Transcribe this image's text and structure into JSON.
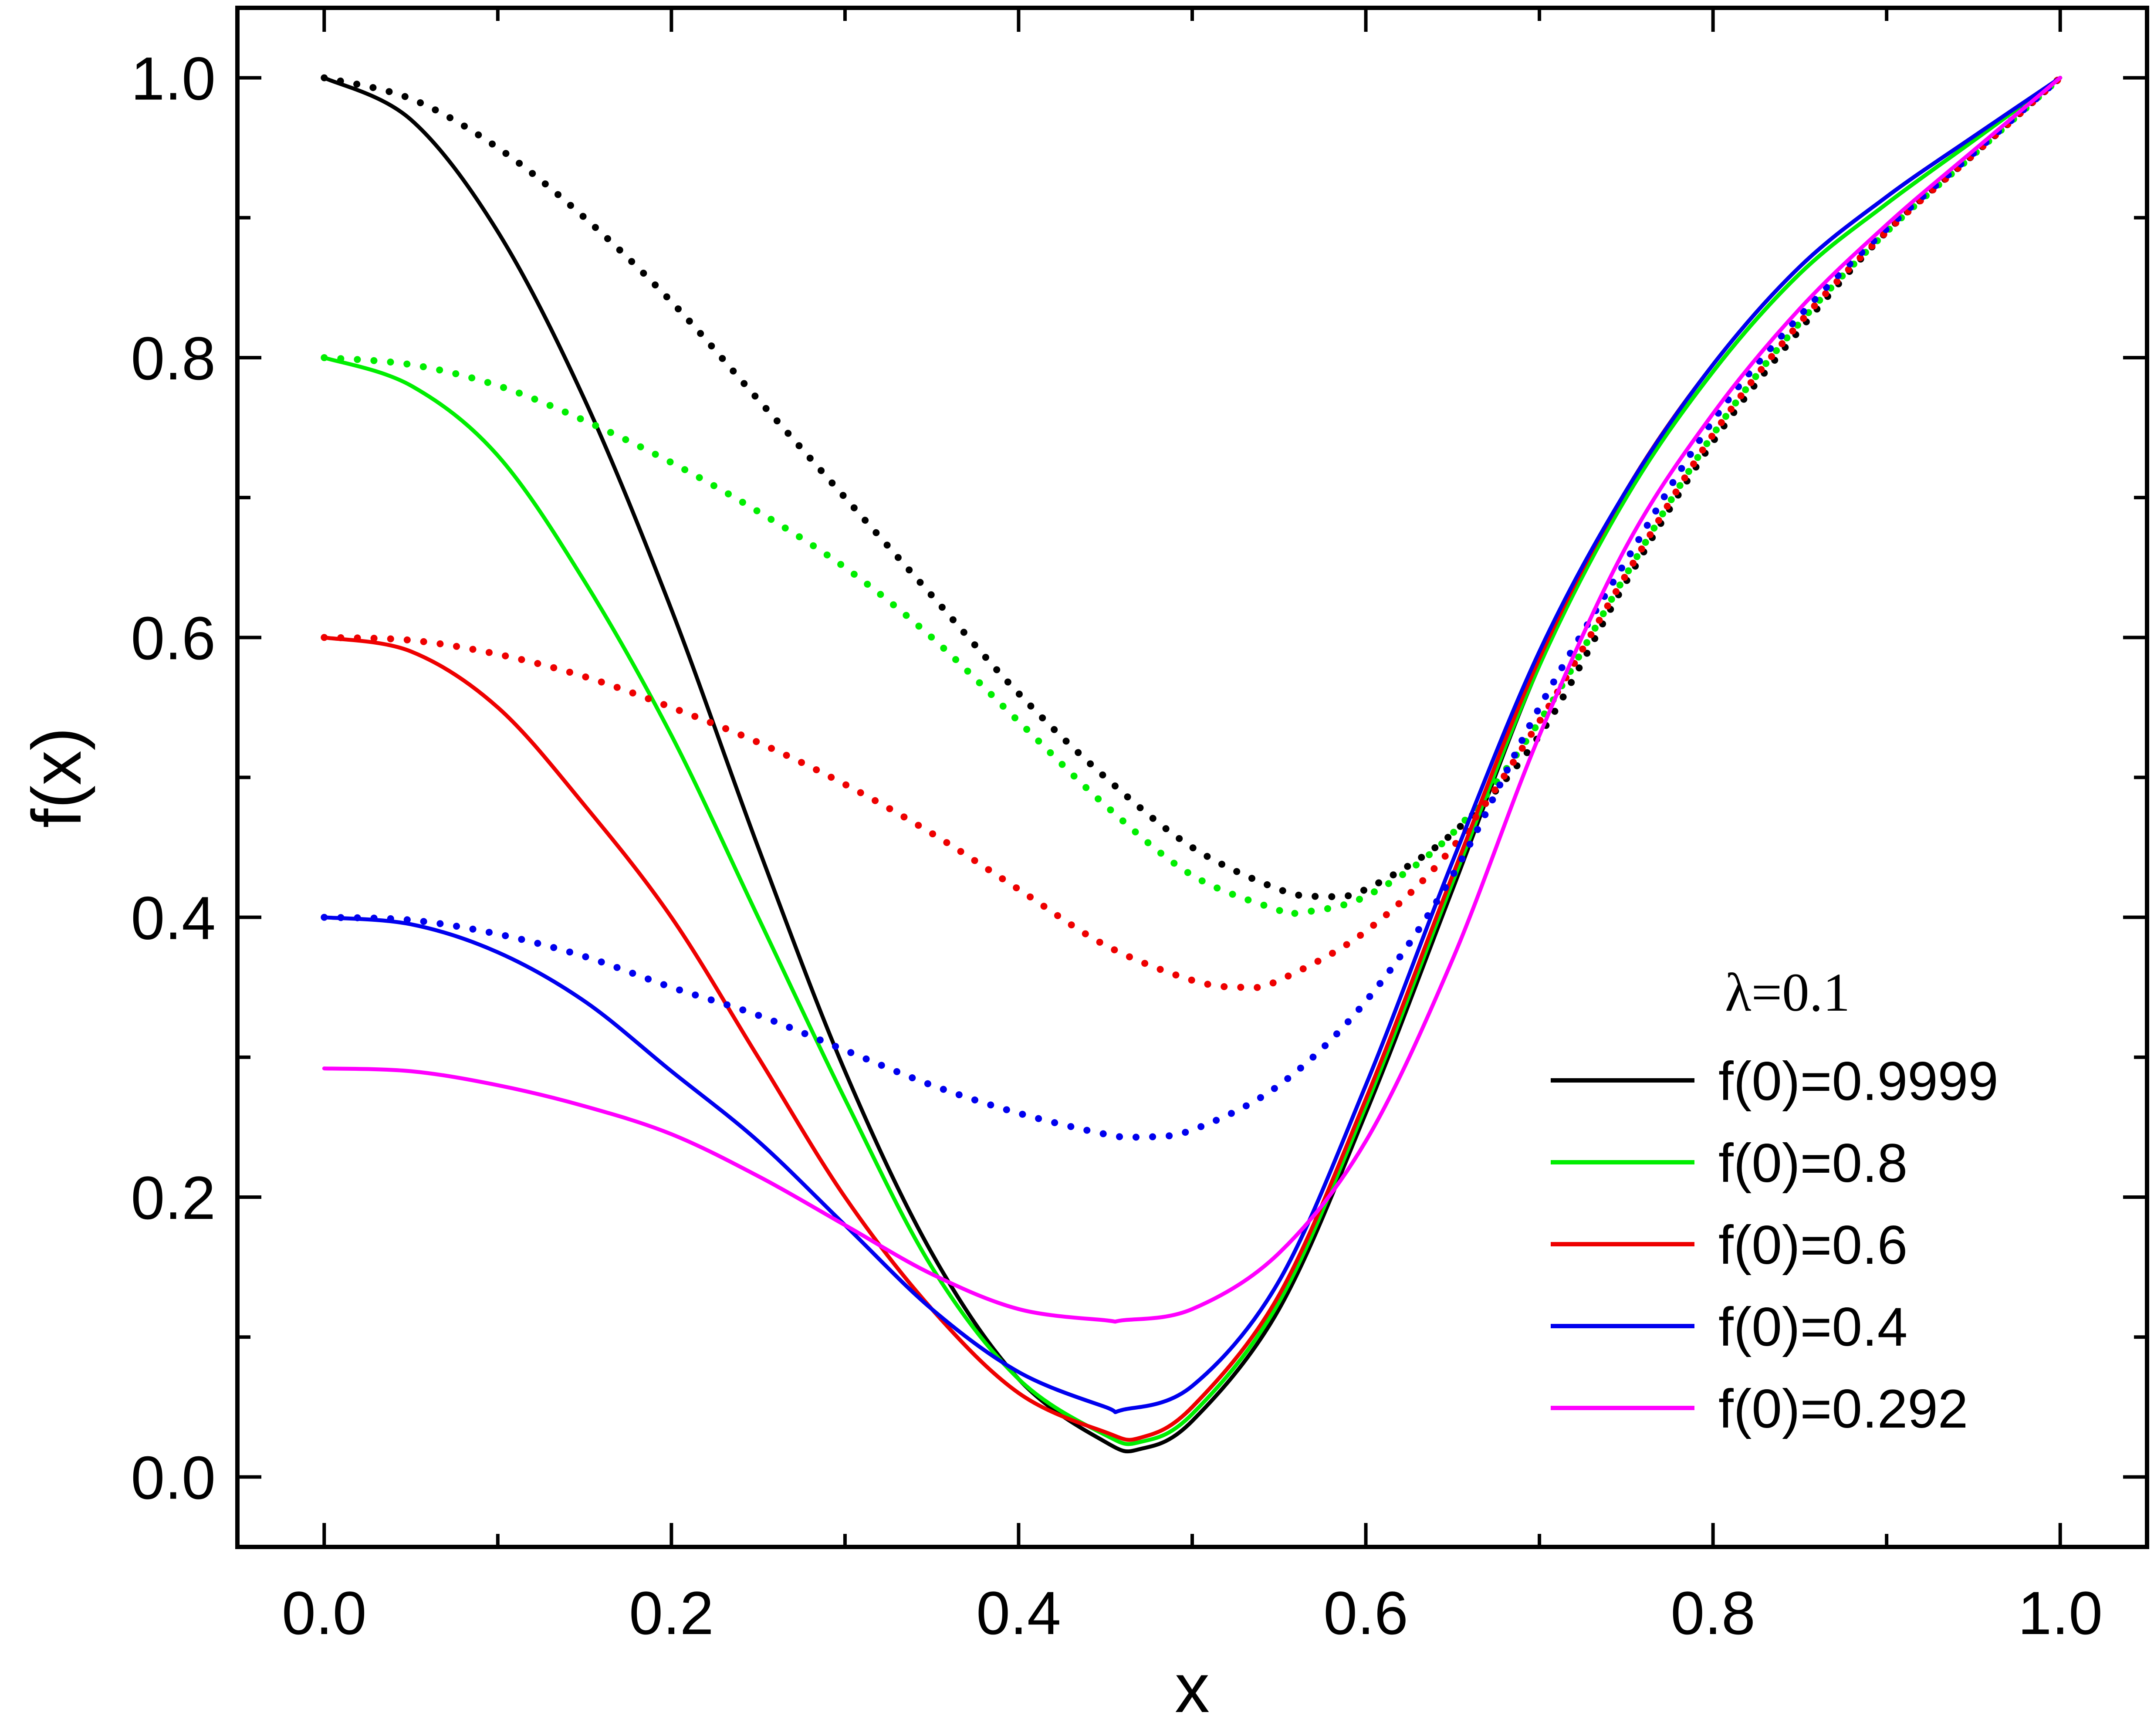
{
  "chart_data": {
    "type": "line",
    "xlabel": "x",
    "ylabel": "f(x)",
    "xlim": [
      -0.05,
      1.05
    ],
    "ylim": [
      -0.05,
      1.05
    ],
    "x_ticks": [
      "0.0",
      "0.2",
      "0.4",
      "0.6",
      "0.8",
      "1.0"
    ],
    "y_ticks": [
      "0.0",
      "0.2",
      "0.4",
      "0.6",
      "0.8",
      "1.0"
    ],
    "grid": false,
    "legend_position": "bottom-right",
    "legend_title": "λ=0.1",
    "series": [
      {
        "name": "f(0)=0.9999",
        "color": "#000000",
        "style": "solid",
        "x": [
          0,
          0.05,
          0.1,
          0.15,
          0.2,
          0.25,
          0.3,
          0.35,
          0.4,
          0.45,
          0.47,
          0.5,
          0.55,
          0.6,
          0.65,
          0.7,
          0.75,
          0.8,
          0.85,
          0.9,
          0.95,
          1.0
        ],
        "y": [
          1.0,
          0.97,
          0.89,
          0.77,
          0.62,
          0.45,
          0.29,
          0.16,
          0.07,
          0.025,
          0.02,
          0.04,
          0.12,
          0.26,
          0.42,
          0.58,
          0.7,
          0.79,
          0.86,
          0.91,
          0.955,
          1.0
        ]
      },
      {
        "name": "f(0)=0.9999",
        "color": "#000000",
        "style": "dotted",
        "x": [
          0,
          0.05,
          0.1,
          0.15,
          0.2,
          0.25,
          0.3,
          0.35,
          0.4,
          0.45,
          0.5,
          0.55,
          0.575,
          0.6,
          0.65,
          0.7,
          0.75,
          0.8,
          0.85,
          0.9,
          0.95,
          1.0
        ],
        "y": [
          1.0,
          0.985,
          0.95,
          0.9,
          0.84,
          0.77,
          0.7,
          0.63,
          0.56,
          0.5,
          0.45,
          0.42,
          0.415,
          0.42,
          0.46,
          0.53,
          0.64,
          0.74,
          0.82,
          0.89,
          0.945,
          1.0
        ]
      },
      {
        "name": "f(0)=0.8",
        "color": "#00ee00",
        "style": "solid",
        "x": [
          0,
          0.05,
          0.1,
          0.15,
          0.2,
          0.25,
          0.3,
          0.35,
          0.4,
          0.45,
          0.47,
          0.5,
          0.55,
          0.6,
          0.65,
          0.7,
          0.75,
          0.8,
          0.85,
          0.9,
          0.95,
          1.0
        ],
        "y": [
          0.8,
          0.78,
          0.73,
          0.64,
          0.53,
          0.4,
          0.27,
          0.15,
          0.07,
          0.03,
          0.025,
          0.045,
          0.125,
          0.265,
          0.425,
          0.58,
          0.7,
          0.79,
          0.86,
          0.91,
          0.955,
          1.0
        ]
      },
      {
        "name": "f(0)=0.8",
        "color": "#00ee00",
        "style": "dotted",
        "x": [
          0,
          0.05,
          0.1,
          0.15,
          0.2,
          0.25,
          0.3,
          0.35,
          0.4,
          0.45,
          0.5,
          0.55,
          0.56,
          0.6,
          0.65,
          0.7,
          0.75,
          0.8,
          0.85,
          0.9,
          0.95,
          1.0
        ],
        "y": [
          0.8,
          0.795,
          0.78,
          0.755,
          0.725,
          0.69,
          0.65,
          0.6,
          0.54,
          0.48,
          0.43,
          0.405,
          0.403,
          0.415,
          0.46,
          0.54,
          0.645,
          0.745,
          0.825,
          0.89,
          0.945,
          1.0
        ]
      },
      {
        "name": "f(0)=0.6",
        "color": "#ee0000",
        "style": "solid",
        "x": [
          0,
          0.05,
          0.1,
          0.15,
          0.2,
          0.25,
          0.3,
          0.35,
          0.4,
          0.45,
          0.47,
          0.5,
          0.55,
          0.6,
          0.65,
          0.7,
          0.75,
          0.8,
          0.85,
          0.9,
          0.95,
          1.0
        ],
        "y": [
          0.6,
          0.59,
          0.55,
          0.48,
          0.4,
          0.3,
          0.2,
          0.12,
          0.06,
          0.032,
          0.028,
          0.05,
          0.13,
          0.27,
          0.43,
          0.585,
          0.705,
          0.795,
          0.865,
          0.915,
          0.958,
          1.0
        ]
      },
      {
        "name": "f(0)=0.6",
        "color": "#ee0000",
        "style": "dotted",
        "x": [
          0,
          0.05,
          0.1,
          0.15,
          0.2,
          0.25,
          0.3,
          0.35,
          0.4,
          0.45,
          0.5,
          0.53,
          0.55,
          0.6,
          0.65,
          0.7,
          0.75,
          0.8,
          0.85,
          0.9,
          0.95,
          1.0
        ],
        "y": [
          0.6,
          0.598,
          0.588,
          0.572,
          0.55,
          0.525,
          0.495,
          0.46,
          0.42,
          0.38,
          0.355,
          0.35,
          0.355,
          0.39,
          0.45,
          0.54,
          0.645,
          0.745,
          0.825,
          0.89,
          0.945,
          1.0
        ]
      },
      {
        "name": "f(0)=0.4",
        "color": "#0000ee",
        "style": "solid",
        "x": [
          0,
          0.05,
          0.1,
          0.15,
          0.2,
          0.25,
          0.3,
          0.35,
          0.4,
          0.45,
          0.46,
          0.5,
          0.55,
          0.6,
          0.65,
          0.7,
          0.75,
          0.8,
          0.85,
          0.9,
          0.95,
          1.0
        ],
        "y": [
          0.4,
          0.395,
          0.375,
          0.34,
          0.29,
          0.24,
          0.18,
          0.12,
          0.075,
          0.05,
          0.048,
          0.065,
          0.14,
          0.28,
          0.44,
          0.59,
          0.705,
          0.795,
          0.865,
          0.915,
          0.958,
          1.0
        ]
      },
      {
        "name": "f(0)=0.4",
        "color": "#0000ee",
        "style": "dotted",
        "x": [
          0,
          0.05,
          0.1,
          0.15,
          0.2,
          0.25,
          0.3,
          0.35,
          0.4,
          0.45,
          0.47,
          0.5,
          0.55,
          0.6,
          0.65,
          0.7,
          0.75,
          0.8,
          0.85,
          0.9,
          0.95,
          1.0
        ],
        "y": [
          0.4,
          0.398,
          0.388,
          0.372,
          0.35,
          0.33,
          0.305,
          0.28,
          0.26,
          0.245,
          0.243,
          0.248,
          0.28,
          0.34,
          0.43,
          0.55,
          0.655,
          0.755,
          0.83,
          0.892,
          0.946,
          1.0
        ]
      },
      {
        "name": "f(0)=0.292",
        "color": "#ff00ff",
        "style": "solid",
        "x": [
          0,
          0.05,
          0.1,
          0.15,
          0.2,
          0.25,
          0.3,
          0.35,
          0.4,
          0.45,
          0.46,
          0.5,
          0.55,
          0.6,
          0.65,
          0.7,
          0.75,
          0.8,
          0.85,
          0.9,
          0.95,
          1.0
        ],
        "y": [
          0.292,
          0.29,
          0.28,
          0.265,
          0.245,
          0.215,
          0.18,
          0.145,
          0.12,
          0.112,
          0.112,
          0.12,
          0.16,
          0.24,
          0.37,
          0.53,
          0.665,
          0.76,
          0.835,
          0.895,
          0.948,
          1.0
        ]
      }
    ]
  }
}
